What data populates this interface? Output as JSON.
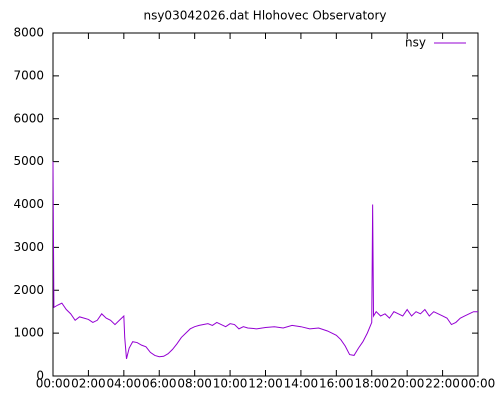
{
  "chart_data": {
    "type": "line",
    "title": "nsy03042026.dat Hlohovec Observatory",
    "x": [
      0,
      0.05,
      0.25,
      0.5,
      0.75,
      1,
      1.25,
      1.5,
      1.75,
      2,
      2.25,
      2.5,
      2.75,
      3,
      3.25,
      3.5,
      3.75,
      4,
      4.05,
      4.15,
      4.3,
      4.5,
      4.75,
      5,
      5.25,
      5.5,
      5.75,
      6,
      6.25,
      6.5,
      6.75,
      7,
      7.25,
      7.5,
      7.75,
      8,
      8.25,
      8.5,
      8.75,
      9,
      9.25,
      9.5,
      9.75,
      10,
      10.25,
      10.5,
      10.75,
      11,
      11.5,
      12,
      12.5,
      13,
      13.5,
      14,
      14.5,
      15,
      15.5,
      16,
      16.25,
      16.5,
      16.75,
      17,
      17.25,
      17.5,
      17.75,
      18,
      18.05,
      18.1,
      18.25,
      18.5,
      18.75,
      19,
      19.25,
      19.5,
      19.75,
      20,
      20.25,
      20.5,
      20.75,
      21,
      21.25,
      21.5,
      21.75,
      22,
      22.25,
      22.5,
      22.75,
      23,
      23.25,
      23.5,
      23.75,
      24
    ],
    "series": [
      {
        "name": "nsy",
        "color": "#9400d3",
        "values": [
          5000,
          1600,
          1650,
          1700,
          1550,
          1450,
          1300,
          1380,
          1350,
          1320,
          1250,
          1300,
          1450,
          1350,
          1300,
          1200,
          1300,
          1400,
          900,
          400,
          650,
          800,
          780,
          720,
          680,
          550,
          480,
          450,
          460,
          520,
          620,
          750,
          900,
          1000,
          1100,
          1150,
          1180,
          1200,
          1220,
          1180,
          1250,
          1200,
          1150,
          1220,
          1200,
          1100,
          1150,
          1120,
          1100,
          1130,
          1150,
          1120,
          1180,
          1150,
          1100,
          1120,
          1050,
          950,
          850,
          700,
          500,
          480,
          650,
          800,
          1000,
          1250,
          4000,
          1400,
          1500,
          1400,
          1450,
          1350,
          1500,
          1450,
          1400,
          1550,
          1400,
          1500,
          1450,
          1550,
          1400,
          1500,
          1450,
          1400,
          1350,
          1200,
          1250,
          1350,
          1400,
          1450,
          1500,
          1500
        ]
      }
    ],
    "xlim": [
      0,
      24
    ],
    "xticks": [
      {
        "value": 0,
        "label": "00:00"
      },
      {
        "value": 2,
        "label": "02:00"
      },
      {
        "value": 4,
        "label": "04:00"
      },
      {
        "value": 6,
        "label": "06:00"
      },
      {
        "value": 8,
        "label": "08:00"
      },
      {
        "value": 10,
        "label": "10:00"
      },
      {
        "value": 12,
        "label": "12:00"
      },
      {
        "value": 14,
        "label": "14:00"
      },
      {
        "value": 16,
        "label": "16:00"
      },
      {
        "value": 18,
        "label": "18:00"
      },
      {
        "value": 20,
        "label": "20:00"
      },
      {
        "value": 22,
        "label": "22:00"
      },
      {
        "value": 24,
        "label": "00:00"
      }
    ],
    "ylim": [
      0,
      8000
    ],
    "yticks": [
      0,
      1000,
      2000,
      3000,
      4000,
      5000,
      6000,
      7000,
      8000
    ],
    "legend": "top-right"
  }
}
